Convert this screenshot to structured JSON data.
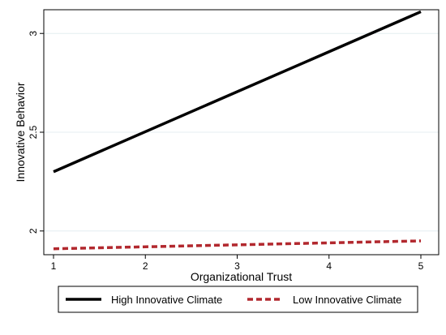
{
  "chart_data": {
    "type": "line",
    "xlabel": "Organizational Trust",
    "ylabel": "Innovative Behavior",
    "xlim": [
      1,
      5
    ],
    "ylim": [
      1.88,
      3.12
    ],
    "x_ticks": [
      1,
      2,
      3,
      4,
      5
    ],
    "y_ticks": [
      2,
      2.5,
      3
    ],
    "x_tick_labels": [
      "1",
      "2",
      "3",
      "4",
      "5"
    ],
    "y_tick_labels": [
      "2",
      "2.5",
      "3"
    ],
    "grid": "horizontal",
    "legend_position": "bottom",
    "series": [
      {
        "name": "High Innovative Climate",
        "x": [
          1,
          5
        ],
        "y": [
          2.3,
          3.11
        ],
        "color": "#000000",
        "style": "solid"
      },
      {
        "name": "Low Innovative Climate",
        "x": [
          1,
          5
        ],
        "y": [
          1.91,
          1.95
        ],
        "color": "#b2282e",
        "style": "dashed"
      }
    ]
  }
}
